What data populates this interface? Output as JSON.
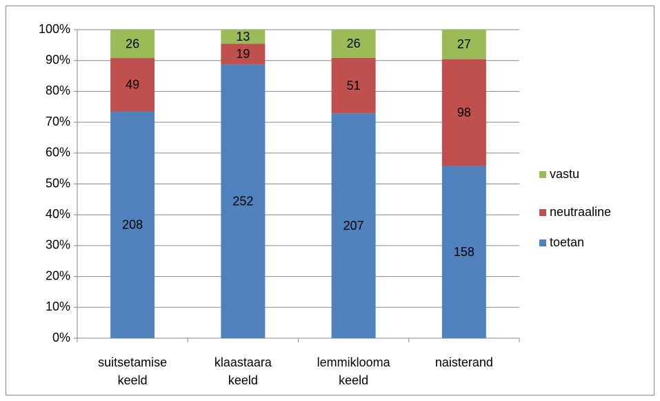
{
  "chart_data": {
    "type": "stacked_bar_100",
    "categories": [
      "suitsetamise keeld",
      "klaastaara keeld",
      "lemmiklooma keeld",
      "naisterand"
    ],
    "series": [
      {
        "name": "toetan",
        "color": "#4f81bd",
        "values": [
          208,
          252,
          207,
          158
        ]
      },
      {
        "name": "neutraaline",
        "color": "#c0504d",
        "values": [
          49,
          19,
          51,
          98
        ]
      },
      {
        "name": "vastu",
        "color": "#9bbb59",
        "values": [
          26,
          13,
          26,
          27
        ]
      }
    ],
    "ylim": [
      0,
      100
    ],
    "yticks": [
      {
        "value": 0,
        "label": "0%"
      },
      {
        "value": 10,
        "label": "10%"
      },
      {
        "value": 20,
        "label": "20%"
      },
      {
        "value": 30,
        "label": "30%"
      },
      {
        "value": 40,
        "label": "40%"
      },
      {
        "value": 50,
        "label": "50%"
      },
      {
        "value": 60,
        "label": "60%"
      },
      {
        "value": 70,
        "label": "70%"
      },
      {
        "value": 80,
        "label": "80%"
      },
      {
        "value": 90,
        "label": "90%"
      },
      {
        "value": 100,
        "label": "100%"
      }
    ],
    "grid": true,
    "legend": "right"
  }
}
